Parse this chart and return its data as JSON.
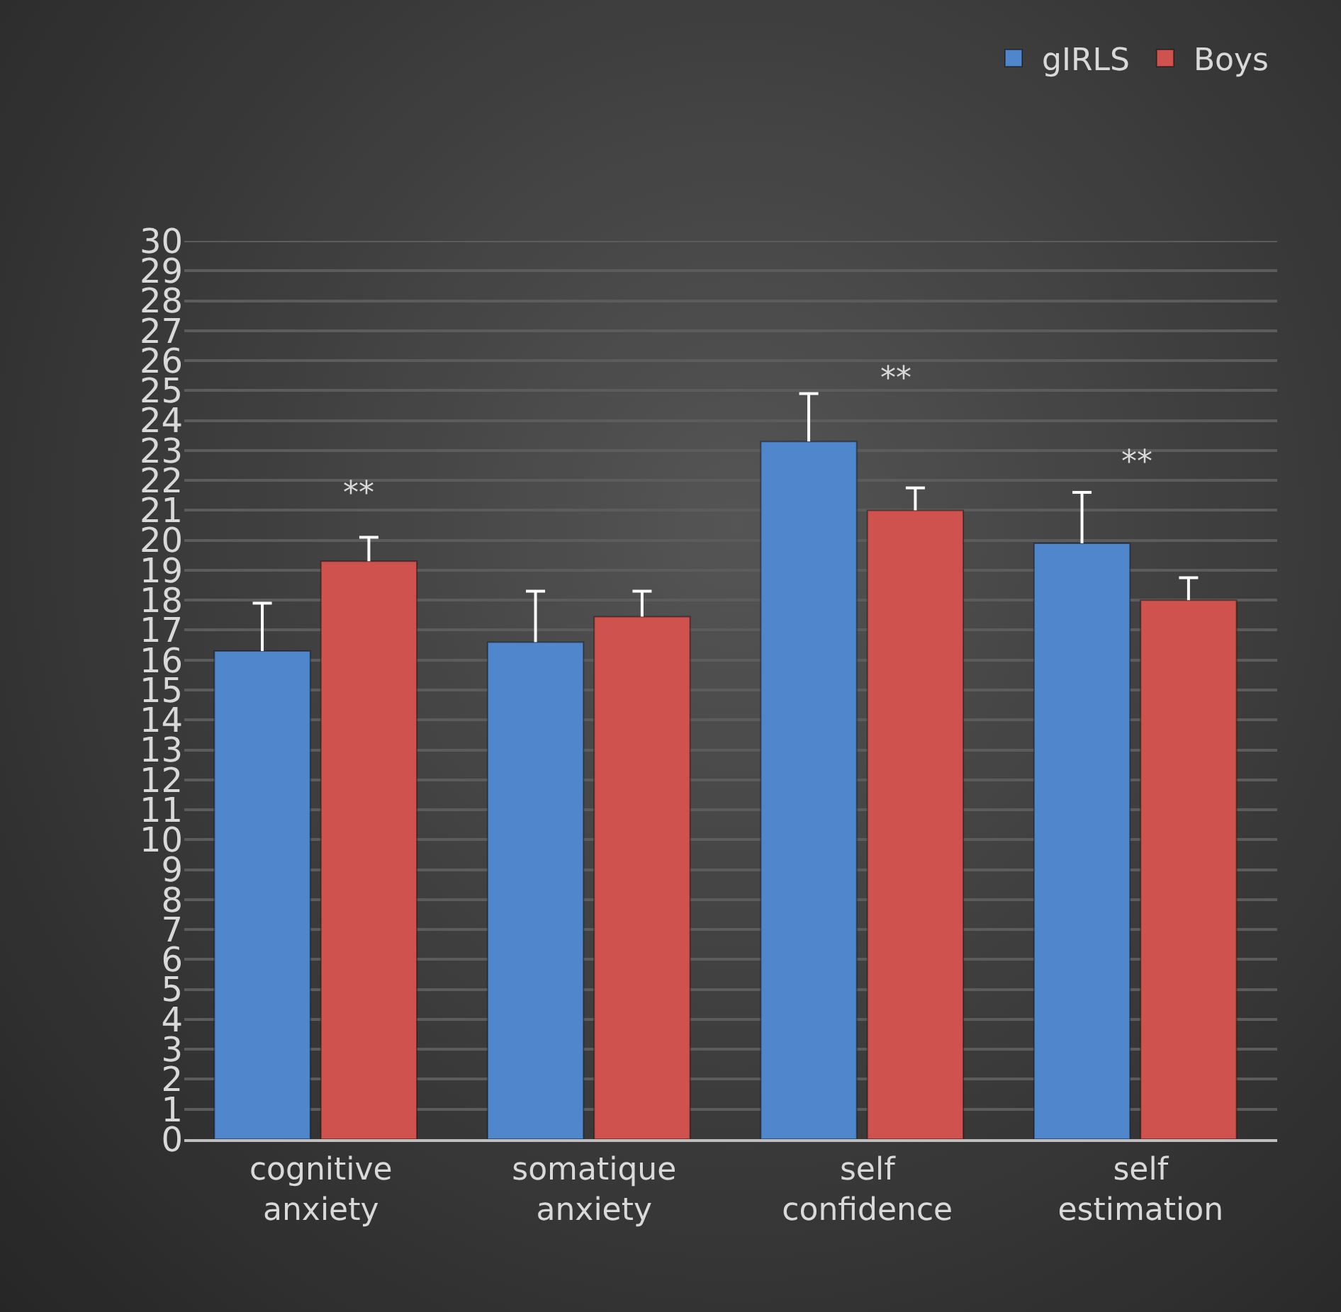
{
  "chart_data": {
    "type": "bar",
    "categories": [
      "cognitive anxiety",
      "somatique anxiety",
      "self confidence",
      "self estimation"
    ],
    "series": [
      {
        "name": "gIRLS",
        "color": "#4f86cc",
        "values": [
          16.3,
          16.6,
          23.3,
          19.9
        ],
        "errors": [
          [
            16.3,
            17.9
          ],
          [
            16.6,
            18.3
          ],
          [
            23.3,
            24.9
          ],
          [
            19.9,
            21.6
          ]
        ]
      },
      {
        "name": "Boys",
        "color": "#d0524e",
        "values": [
          19.3,
          17.45,
          21.0,
          18.0
        ],
        "errors": [
          [
            19.3,
            20.1
          ],
          [
            17.45,
            18.3
          ],
          [
            21.0,
            21.75
          ],
          [
            18.0,
            18.75
          ]
        ]
      }
    ],
    "ylim": [
      0,
      30
    ],
    "yticks": [
      0,
      1,
      2,
      3,
      4,
      5,
      6,
      7,
      8,
      9,
      10,
      11,
      12,
      13,
      14,
      15,
      16,
      17,
      18,
      19,
      20,
      21,
      22,
      23,
      24,
      25,
      26,
      27,
      28,
      29,
      30
    ],
    "grid": "y",
    "legend": "top right",
    "annotations": [
      "**",
      "**",
      "**"
    ]
  }
}
